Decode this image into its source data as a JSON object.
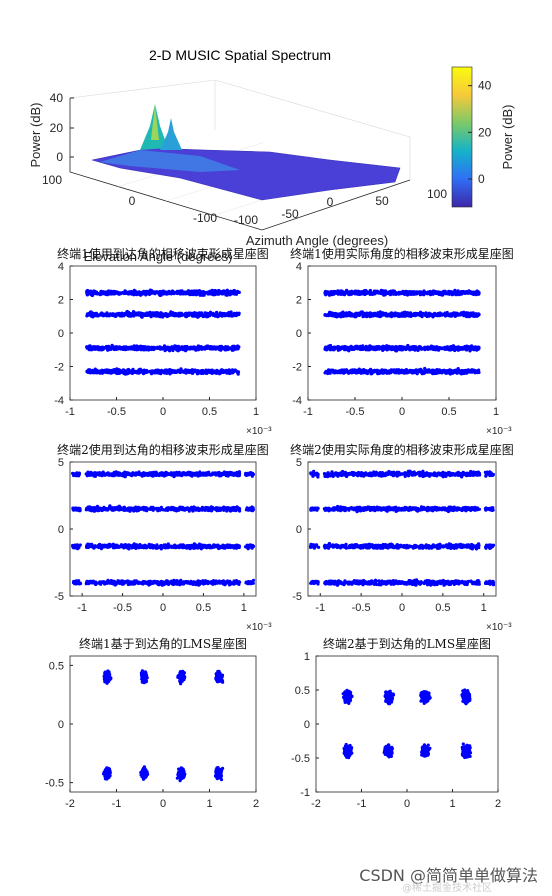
{
  "chart_data": [
    {
      "type": "surface3d",
      "title": "2-D MUSIC Spatial Spectrum",
      "zlabel": "Power (dB)",
      "xlabel": "Azimuth Angle (degrees)",
      "ylabel": "Elevation Angle (degrees)",
      "z_ticks": [
        "40",
        "20",
        "0"
      ],
      "azimuth_ticks": [
        "-100",
        "-50",
        "0",
        "50",
        "100"
      ],
      "elevation_ticks": [
        "100",
        "0",
        "-100"
      ],
      "zlim": [
        -15,
        48
      ],
      "peaks": [
        {
          "z": 42
        },
        {
          "z": 35
        }
      ],
      "colorbar": {
        "label": "Power (dB)",
        "ticks": [
          "40",
          "20",
          "0"
        ],
        "range": [
          -12,
          48
        ],
        "colors": [
          "#3e26a8",
          "#2f6ff6",
          "#14b3c9",
          "#7cc967",
          "#f7c93a",
          "#f9fb0e"
        ]
      }
    },
    {
      "type": "scatter",
      "title": "终端1使用到达角的相移波束形成星座图",
      "xlim": [
        -1,
        1
      ],
      "ylim": [
        -4,
        4
      ],
      "x_ticks": [
        "-1",
        "-0.5",
        "0",
        "0.5",
        "1"
      ],
      "y_ticks": [
        "4",
        "2",
        "0",
        "-2",
        "-4"
      ],
      "x_exponent": "×10⁻³",
      "clusters": [
        {
          "y": 2.4,
          "x": [
            -0.82,
            0.82
          ]
        },
        {
          "y": 1.1,
          "x": [
            -0.82,
            0.82
          ]
        },
        {
          "y": -0.9,
          "x": [
            -0.82,
            0.82
          ]
        },
        {
          "y": -2.3,
          "x": [
            -0.82,
            0.82
          ]
        }
      ]
    },
    {
      "type": "scatter",
      "title": "终端1使用实际角度的相移波束形成星座图",
      "xlim": [
        -1,
        1
      ],
      "ylim": [
        -4,
        4
      ],
      "x_ticks": [
        "-1",
        "-0.5",
        "0",
        "0.5",
        "1"
      ],
      "y_ticks": [
        "4",
        "2",
        "0",
        "-2",
        "-4"
      ],
      "x_exponent": "×10⁻³",
      "clusters": [
        {
          "y": 2.4,
          "x": [
            -0.82,
            0.82
          ]
        },
        {
          "y": 1.1,
          "x": [
            -0.82,
            0.82
          ]
        },
        {
          "y": -0.9,
          "x": [
            -0.82,
            0.82
          ]
        },
        {
          "y": -2.3,
          "x": [
            -0.82,
            0.82
          ]
        }
      ]
    },
    {
      "type": "scatter",
      "title": "终端2使用到达角的相移波束形成星座图",
      "xlim": [
        -1.15,
        1.15
      ],
      "ylim": [
        -5,
        5
      ],
      "x_ticks": [
        "-1",
        "-0.5",
        "0",
        "0.5",
        "1"
      ],
      "y_ticks": [
        "5",
        "0",
        "-5"
      ],
      "x_exponent": "×10⁻³",
      "clusters": [
        {
          "y": 4.1,
          "x": [
            -1.12,
            1.12
          ]
        },
        {
          "y": 1.5,
          "x": [
            -1.12,
            1.12
          ]
        },
        {
          "y": -1.3,
          "x": [
            -1.12,
            1.12
          ]
        },
        {
          "y": -4.0,
          "x": [
            -1.12,
            1.12
          ]
        }
      ]
    },
    {
      "type": "scatter",
      "title": "终端2使用实际角度的相移波束形成星座图",
      "xlim": [
        -1.15,
        1.15
      ],
      "ylim": [
        -5,
        5
      ],
      "x_ticks": [
        "-1",
        "-0.5",
        "0",
        "0.5",
        "1"
      ],
      "y_ticks": [
        "5",
        "0",
        "-5"
      ],
      "x_exponent": "×10⁻³",
      "clusters": [
        {
          "y": 4.1,
          "x": [
            -1.12,
            1.12
          ]
        },
        {
          "y": 1.5,
          "x": [
            -1.12,
            1.12
          ]
        },
        {
          "y": -1.3,
          "x": [
            -1.12,
            1.12
          ]
        },
        {
          "y": -4.0,
          "x": [
            -1.12,
            1.12
          ]
        }
      ]
    },
    {
      "type": "scatter",
      "title": "终端1基于到达角的LMS星座图",
      "xlim": [
        -2,
        2
      ],
      "ylim": [
        -0.58,
        0.58
      ],
      "x_ticks": [
        "-2",
        "-1",
        "0",
        "1",
        "2"
      ],
      "y_ticks": [
        "0.5",
        "0",
        "-0.5"
      ],
      "points": [
        {
          "x": -1.2,
          "y": 0.4
        },
        {
          "x": -0.4,
          "y": 0.4
        },
        {
          "x": 0.4,
          "y": 0.4
        },
        {
          "x": 1.2,
          "y": 0.4
        },
        {
          "x": -1.2,
          "y": -0.42
        },
        {
          "x": -0.4,
          "y": -0.42
        },
        {
          "x": 0.4,
          "y": -0.42
        },
        {
          "x": 1.2,
          "y": -0.42
        }
      ],
      "spread": [
        0.1,
        0.07
      ]
    },
    {
      "type": "scatter",
      "title": "终端2基于到达角的LMS星座图",
      "xlim": [
        -2,
        2
      ],
      "ylim": [
        -1,
        1
      ],
      "x_ticks": [
        "-2",
        "-1",
        "0",
        "1",
        "2"
      ],
      "y_ticks": [
        "1",
        "0.5",
        "0",
        "-0.5",
        "-1"
      ],
      "points": [
        {
          "x": -1.3,
          "y": 0.4
        },
        {
          "x": -0.4,
          "y": 0.4
        },
        {
          "x": 0.4,
          "y": 0.4
        },
        {
          "x": 1.3,
          "y": 0.4
        },
        {
          "x": -1.3,
          "y": -0.4
        },
        {
          "x": -0.4,
          "y": -0.4
        },
        {
          "x": 0.4,
          "y": -0.4
        },
        {
          "x": 1.3,
          "y": -0.4
        }
      ],
      "spread": [
        0.13,
        0.13
      ]
    }
  ],
  "watermark": "CSDN @简简单单做算法",
  "watermark_sub": "@稀土掘金技术社区",
  "colors": {
    "points": "#0000ff",
    "axis": "#262626"
  }
}
